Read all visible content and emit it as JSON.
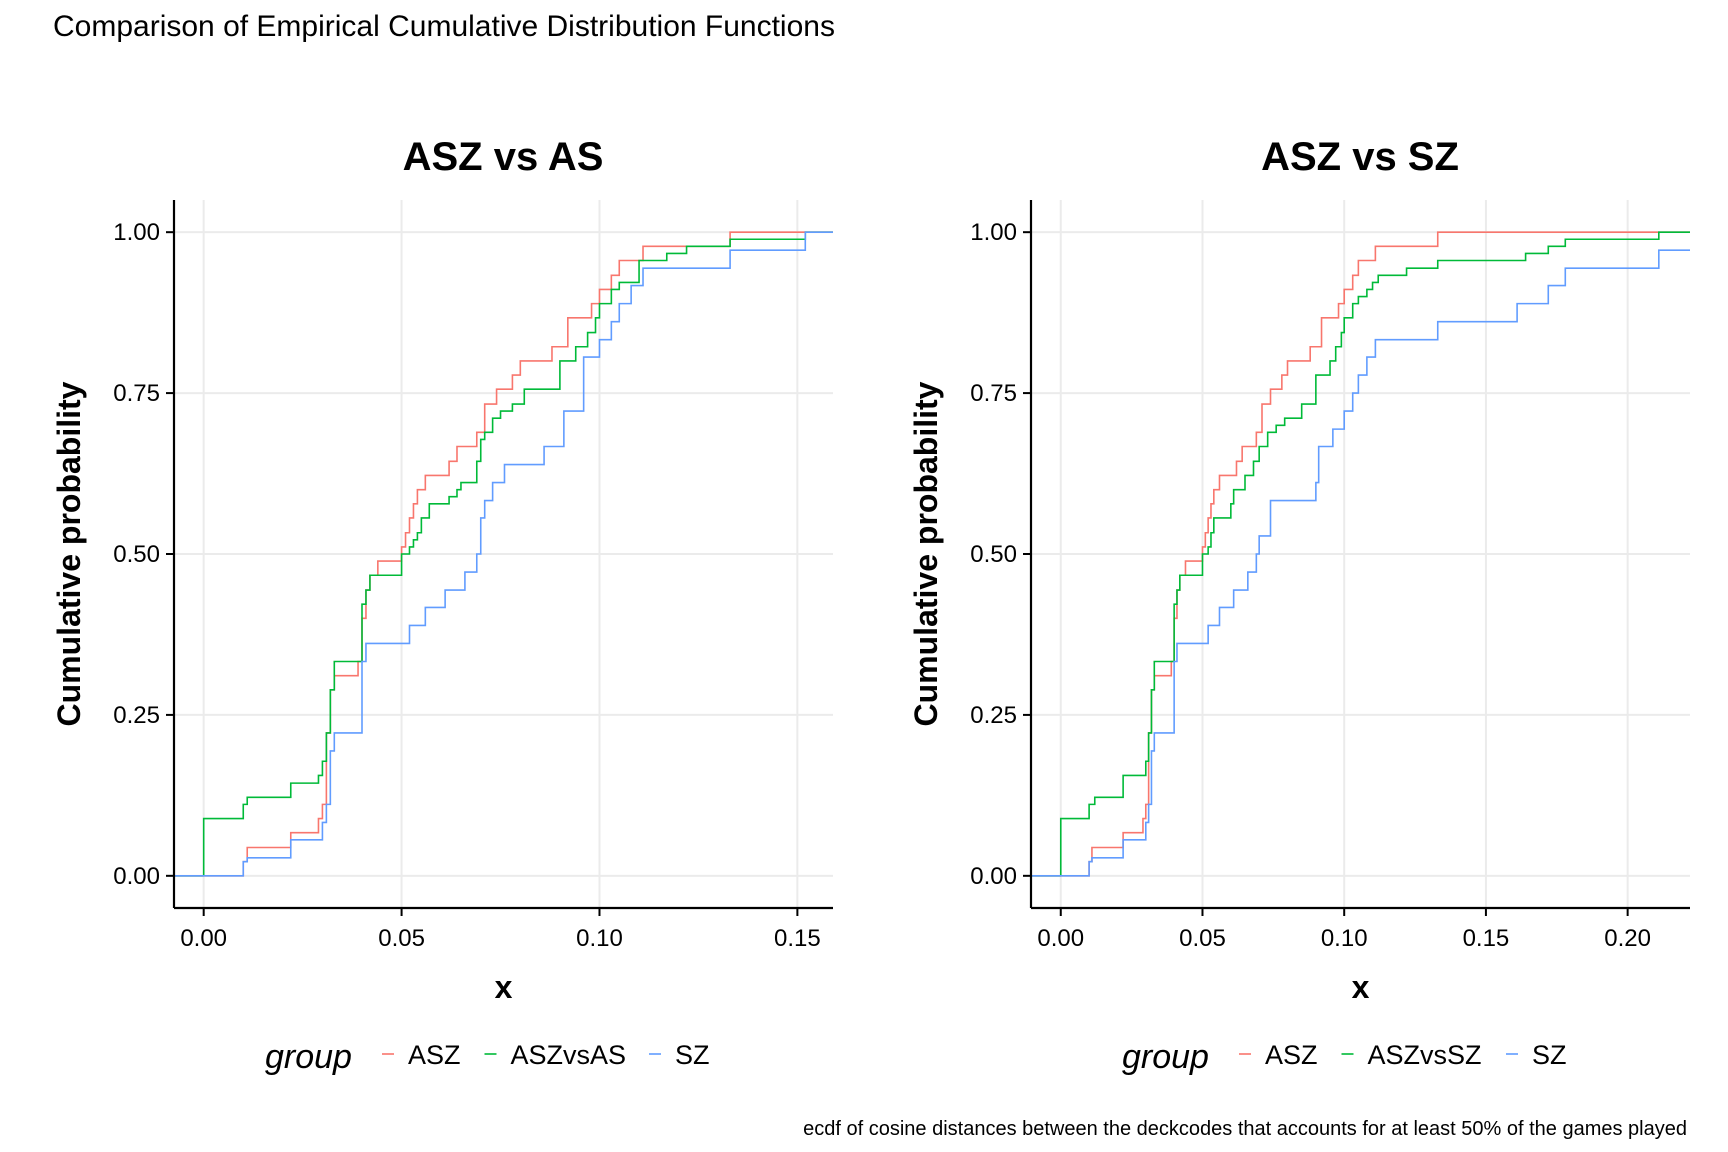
{
  "title": "Comparison of Empirical Cumulative Distribution Functions",
  "caption": "ecdf of cosine distances between the deckcodes that accounts for at least 50% of the games played",
  "legend_title": "group",
  "colors": {
    "ASZ": "#F8766D",
    "green": "#00BA38",
    "SZ": "#619CFF",
    "grid": "#EBEBEB"
  },
  "chart_data": [
    {
      "type": "line",
      "step": true,
      "title": "ASZ vs AS",
      "xlabel": "x",
      "ylabel": "Cumulative probability",
      "xlim": [
        -0.0075,
        0.159
      ],
      "ylim": [
        -0.05,
        1.05
      ],
      "xticks": [
        0.0,
        0.05,
        0.1,
        0.15
      ],
      "xtick_labels": [
        "0.00",
        "0.05",
        "0.10",
        "0.15"
      ],
      "yticks": [
        0.0,
        0.25,
        0.5,
        0.75,
        1.0
      ],
      "ytick_labels": [
        "0.00",
        "0.25",
        "0.50",
        "0.75",
        "1.00"
      ],
      "grid": true,
      "legend": "bottom",
      "series": [
        {
          "name": "ASZ",
          "color": "#F8766D",
          "x": [
            0.0,
            0.01,
            0.011,
            0.022,
            0.029,
            0.03,
            0.031,
            0.032,
            0.033,
            0.039,
            0.04,
            0.041,
            0.042,
            0.044,
            0.049,
            0.05,
            0.051,
            0.052,
            0.053,
            0.054,
            0.056,
            0.058,
            0.062,
            0.064,
            0.065,
            0.069,
            0.071,
            0.074,
            0.078,
            0.08,
            0.083,
            0.088,
            0.092,
            0.095,
            0.098,
            0.1,
            0.102,
            0.103,
            0.105,
            0.108,
            0.111,
            0.133,
            0.152
          ],
          "y": [
            0.0,
            0.022,
            0.044,
            0.067,
            0.089,
            0.111,
            0.222,
            0.289,
            0.311,
            0.333,
            0.4,
            0.444,
            0.467,
            0.489,
            0.489,
            0.511,
            0.533,
            0.556,
            0.578,
            0.6,
            0.622,
            0.622,
            0.644,
            0.667,
            0.667,
            0.689,
            0.733,
            0.756,
            0.778,
            0.8,
            0.8,
            0.822,
            0.867,
            0.867,
            0.889,
            0.911,
            0.911,
            0.933,
            0.956,
            0.956,
            0.978,
            1.0,
            1.0
          ]
        },
        {
          "name": "ASZvsAS",
          "color": "#00BA38",
          "x": [
            0.0,
            0.0,
            0.01,
            0.011,
            0.022,
            0.029,
            0.03,
            0.031,
            0.032,
            0.033,
            0.039,
            0.04,
            0.041,
            0.042,
            0.049,
            0.05,
            0.052,
            0.053,
            0.054,
            0.055,
            0.057,
            0.061,
            0.062,
            0.064,
            0.065,
            0.068,
            0.069,
            0.07,
            0.071,
            0.073,
            0.075,
            0.078,
            0.079,
            0.081,
            0.09,
            0.091,
            0.094,
            0.097,
            0.099,
            0.1,
            0.101,
            0.103,
            0.105,
            0.11,
            0.117,
            0.122,
            0.133,
            0.152
          ],
          "y": [
            0.0,
            0.089,
            0.111,
            0.122,
            0.144,
            0.156,
            0.178,
            0.222,
            0.289,
            0.333,
            0.333,
            0.422,
            0.444,
            0.467,
            0.467,
            0.5,
            0.511,
            0.522,
            0.533,
            0.556,
            0.578,
            0.578,
            0.589,
            0.6,
            0.611,
            0.611,
            0.644,
            0.678,
            0.689,
            0.711,
            0.722,
            0.733,
            0.733,
            0.756,
            0.8,
            0.8,
            0.822,
            0.844,
            0.867,
            0.889,
            0.889,
            0.911,
            0.922,
            0.956,
            0.967,
            0.978,
            0.989,
            1.0
          ]
        },
        {
          "name": "SZ",
          "color": "#619CFF",
          "x": [
            0.0,
            0.01,
            0.011,
            0.022,
            0.03,
            0.031,
            0.032,
            0.033,
            0.04,
            0.041,
            0.045,
            0.052,
            0.056,
            0.061,
            0.066,
            0.069,
            0.07,
            0.07,
            0.071,
            0.073,
            0.076,
            0.08,
            0.086,
            0.091,
            0.096,
            0.1,
            0.103,
            0.105,
            0.108,
            0.111,
            0.133,
            0.152
          ],
          "y": [
            0.0,
            0.022,
            0.028,
            0.056,
            0.083,
            0.111,
            0.194,
            0.222,
            0.333,
            0.361,
            0.361,
            0.389,
            0.417,
            0.444,
            0.472,
            0.5,
            0.528,
            0.556,
            0.583,
            0.611,
            0.639,
            0.639,
            0.667,
            0.722,
            0.806,
            0.833,
            0.861,
            0.889,
            0.917,
            0.944,
            0.972,
            1.0
          ]
        }
      ]
    },
    {
      "type": "line",
      "step": true,
      "title": "ASZ vs SZ",
      "xlabel": "x",
      "ylabel": "Cumulative probability",
      "xlim": [
        -0.0105,
        0.222
      ],
      "ylim": [
        -0.05,
        1.05
      ],
      "xticks": [
        0.0,
        0.05,
        0.1,
        0.15,
        0.2
      ],
      "xtick_labels": [
        "0.00",
        "0.05",
        "0.10",
        "0.15",
        "0.20"
      ],
      "yticks": [
        0.0,
        0.25,
        0.5,
        0.75,
        1.0
      ],
      "ytick_labels": [
        "0.00",
        "0.25",
        "0.50",
        "0.75",
        "1.00"
      ],
      "grid": true,
      "legend": "bottom",
      "series": [
        {
          "name": "ASZ",
          "color": "#F8766D",
          "x": [
            0.0,
            0.01,
            0.011,
            0.022,
            0.029,
            0.03,
            0.031,
            0.032,
            0.033,
            0.039,
            0.04,
            0.041,
            0.042,
            0.044,
            0.049,
            0.05,
            0.051,
            0.052,
            0.053,
            0.054,
            0.056,
            0.058,
            0.062,
            0.064,
            0.065,
            0.069,
            0.071,
            0.074,
            0.078,
            0.08,
            0.083,
            0.088,
            0.092,
            0.095,
            0.098,
            0.1,
            0.102,
            0.103,
            0.105,
            0.108,
            0.111,
            0.133,
            0.211
          ],
          "y": [
            0.0,
            0.022,
            0.044,
            0.067,
            0.089,
            0.111,
            0.222,
            0.289,
            0.311,
            0.333,
            0.4,
            0.444,
            0.467,
            0.489,
            0.489,
            0.511,
            0.533,
            0.556,
            0.578,
            0.6,
            0.622,
            0.622,
            0.644,
            0.667,
            0.667,
            0.689,
            0.733,
            0.756,
            0.778,
            0.8,
            0.8,
            0.822,
            0.867,
            0.867,
            0.889,
            0.911,
            0.911,
            0.933,
            0.956,
            0.956,
            0.978,
            1.0,
            1.0
          ]
        },
        {
          "name": "ASZvsSZ",
          "color": "#00BA38",
          "x": [
            0.0,
            0.0,
            0.01,
            0.012,
            0.022,
            0.028,
            0.03,
            0.031,
            0.032,
            0.033,
            0.039,
            0.04,
            0.041,
            0.042,
            0.048,
            0.05,
            0.052,
            0.053,
            0.054,
            0.06,
            0.061,
            0.065,
            0.068,
            0.07,
            0.073,
            0.076,
            0.079,
            0.085,
            0.09,
            0.095,
            0.097,
            0.099,
            0.1,
            0.103,
            0.105,
            0.108,
            0.11,
            0.112,
            0.116,
            0.122,
            0.133,
            0.164,
            0.172,
            0.178,
            0.211
          ],
          "y": [
            0.0,
            0.089,
            0.111,
            0.122,
            0.156,
            0.156,
            0.178,
            0.222,
            0.289,
            0.333,
            0.333,
            0.422,
            0.444,
            0.467,
            0.467,
            0.5,
            0.511,
            0.533,
            0.556,
            0.578,
            0.6,
            0.622,
            0.644,
            0.667,
            0.689,
            0.7,
            0.711,
            0.733,
            0.778,
            0.8,
            0.822,
            0.844,
            0.867,
            0.889,
            0.9,
            0.911,
            0.922,
            0.933,
            0.933,
            0.944,
            0.956,
            0.967,
            0.978,
            0.989,
            1.0
          ]
        },
        {
          "name": "SZ",
          "color": "#619CFF",
          "x": [
            0.0,
            0.01,
            0.011,
            0.022,
            0.03,
            0.031,
            0.032,
            0.033,
            0.04,
            0.041,
            0.045,
            0.052,
            0.056,
            0.061,
            0.066,
            0.069,
            0.07,
            0.074,
            0.09,
            0.091,
            0.096,
            0.1,
            0.103,
            0.105,
            0.108,
            0.111,
            0.133,
            0.161,
            0.172,
            0.178,
            0.211
          ],
          "y": [
            0.0,
            0.022,
            0.028,
            0.056,
            0.083,
            0.111,
            0.194,
            0.222,
            0.333,
            0.361,
            0.361,
            0.389,
            0.417,
            0.444,
            0.472,
            0.5,
            0.528,
            0.583,
            0.611,
            0.667,
            0.694,
            0.722,
            0.75,
            0.778,
            0.806,
            0.833,
            0.861,
            0.889,
            0.917,
            0.944,
            0.972
          ]
        }
      ]
    }
  ]
}
